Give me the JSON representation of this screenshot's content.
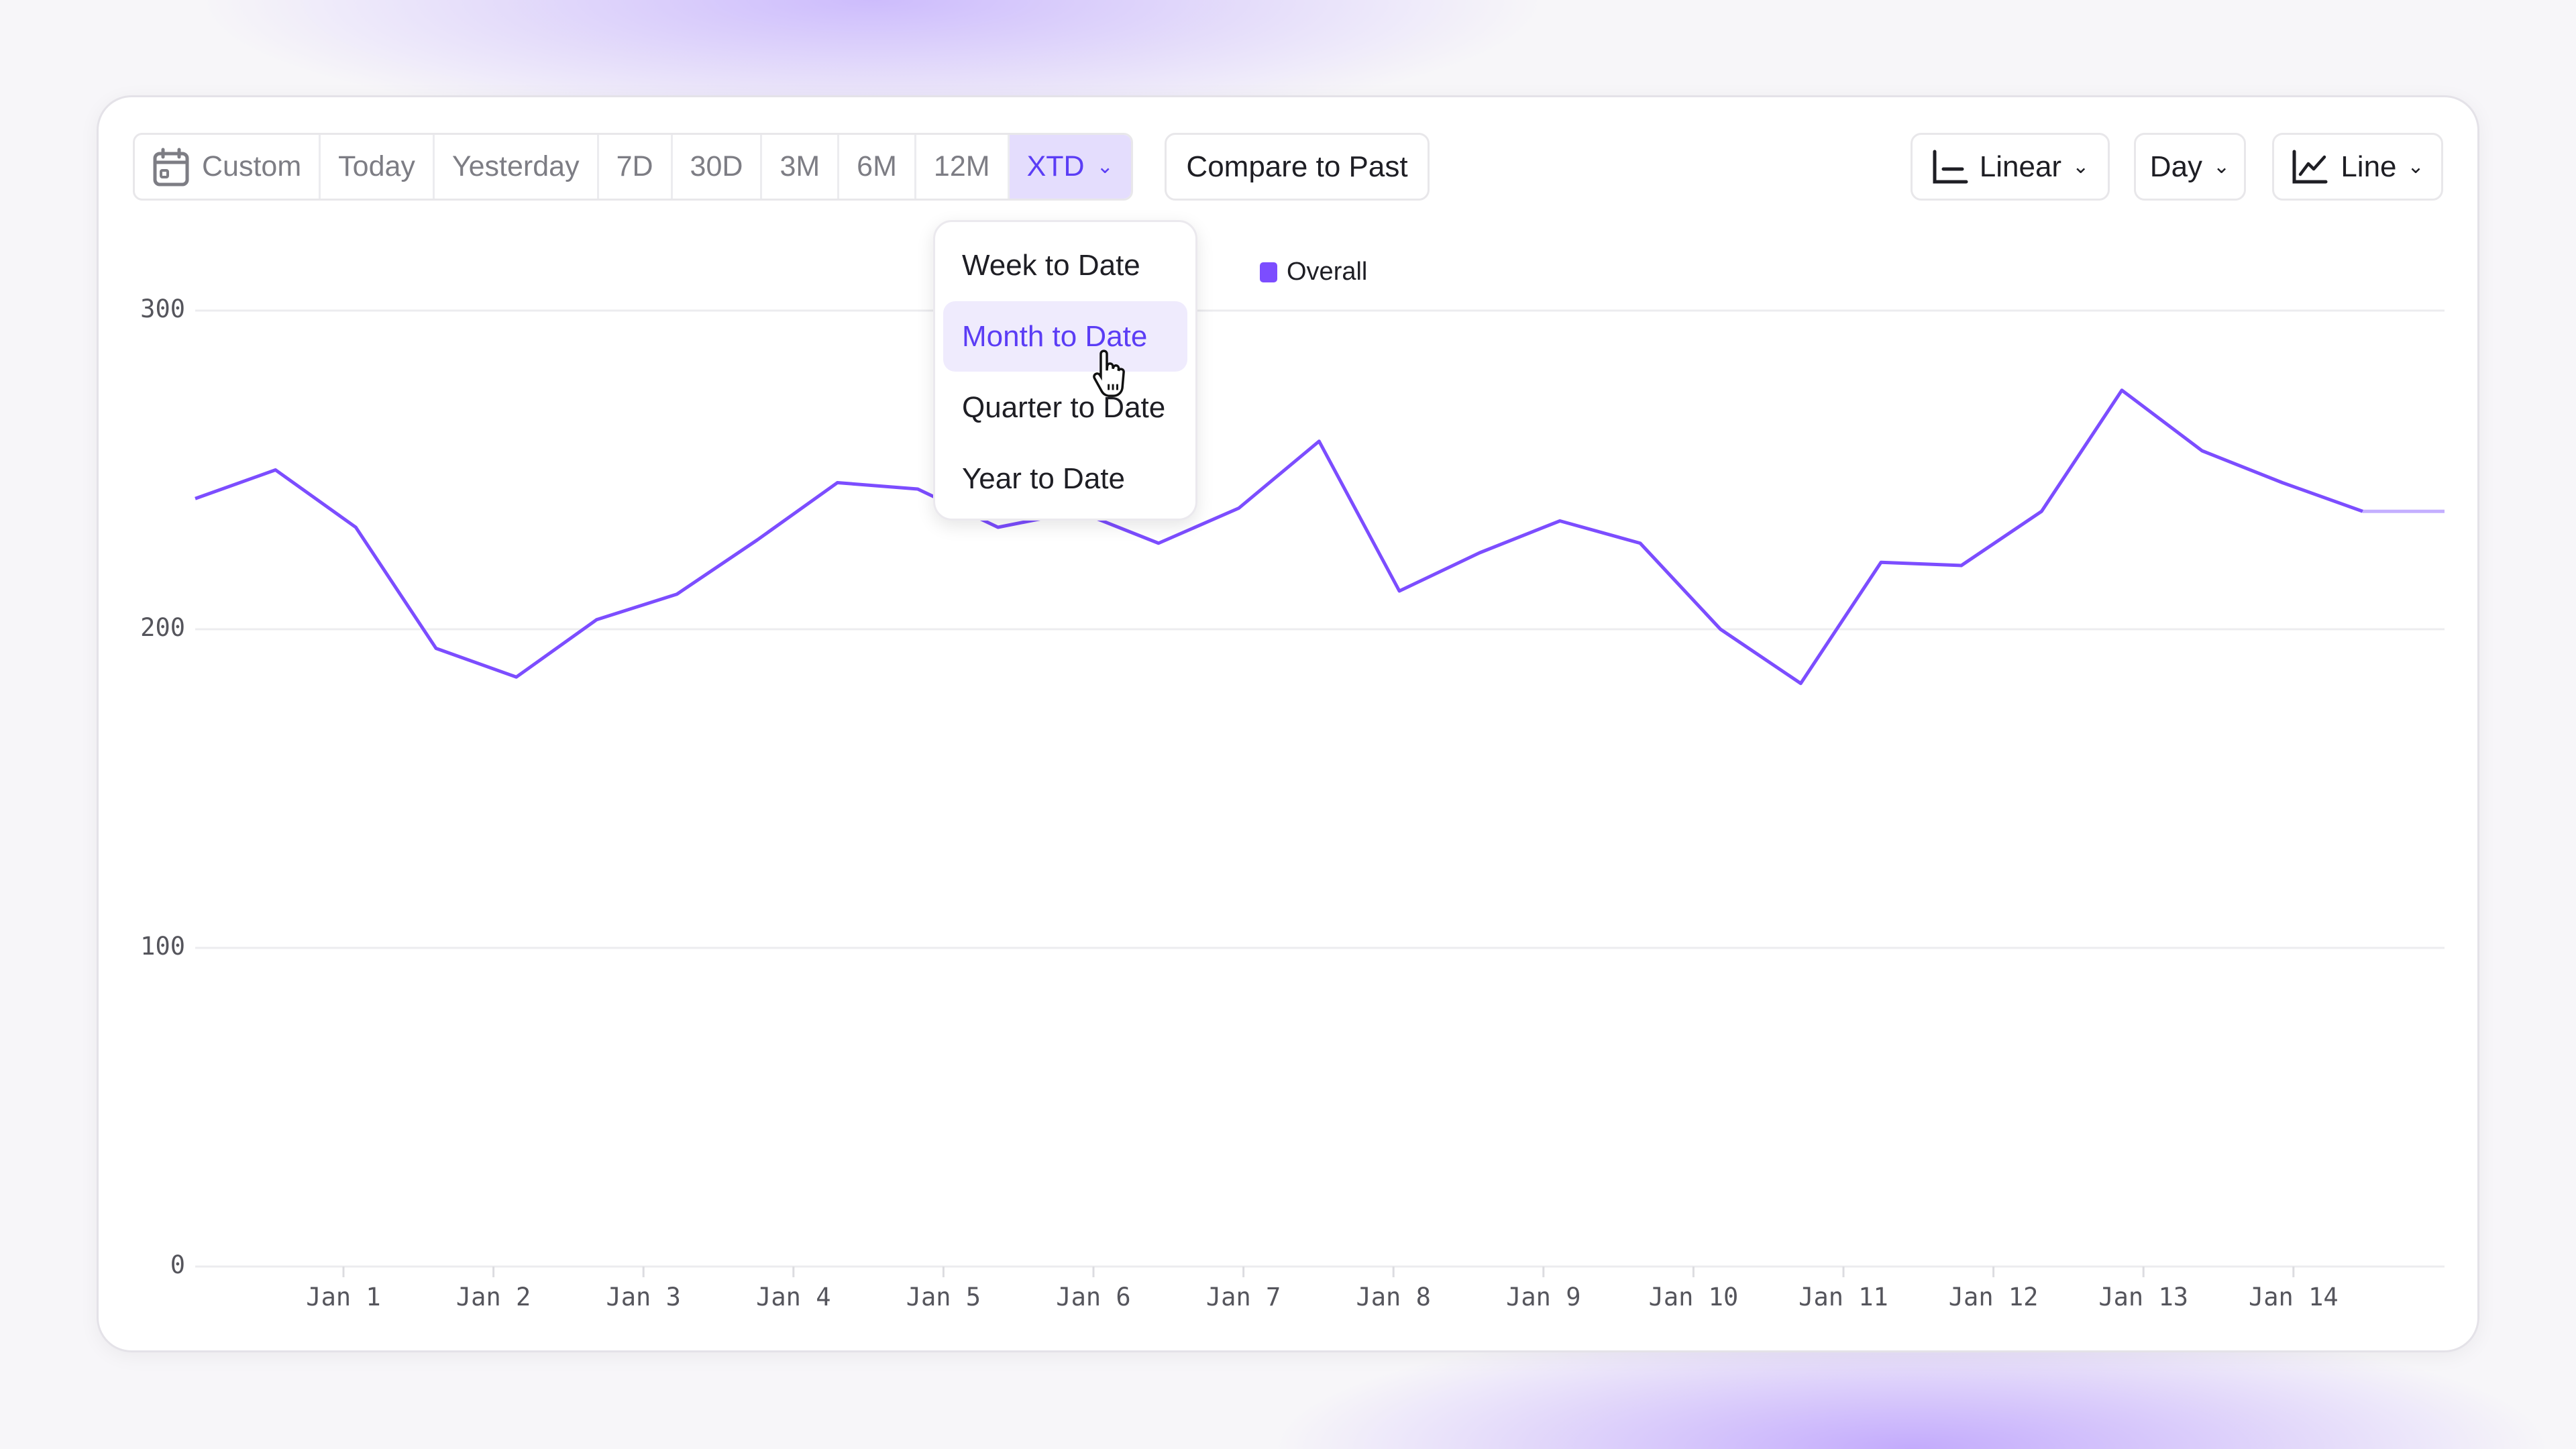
{
  "toolbar": {
    "ranges": [
      "Custom",
      "Today",
      "Yesterday",
      "7D",
      "30D",
      "3M",
      "6M",
      "12M",
      "XTD"
    ],
    "active_range": "XTD",
    "compare_label": "Compare to Past",
    "scale_label": "Linear",
    "interval_label": "Day",
    "chart_type_label": "Line"
  },
  "dropdown": {
    "items": [
      "Week to Date",
      "Month to Date",
      "Quarter to Date",
      "Year to Date"
    ],
    "highlighted": "Month to Date"
  },
  "colors": {
    "accent": "#5b3df5",
    "series": "#7c4dff",
    "active_bg": "#e4ddfd"
  },
  "chart_data": {
    "type": "line",
    "legend": [
      "Overall"
    ],
    "legend_position": "top",
    "ylim": [
      0,
      300
    ],
    "yticks": [
      "0",
      "100",
      "200",
      "300"
    ],
    "xticks": [
      "Jan 1",
      "Jan 2",
      "Jan 3",
      "Jan 4",
      "Jan 5",
      "Jan 6",
      "Jan 7",
      "Jan 8",
      "Jan 9",
      "Jan 10",
      "Jan 11",
      "Jan 12",
      "Jan 13",
      "Jan 14"
    ],
    "grid": true,
    "series": [
      {
        "name": "Overall",
        "values": [
          241,
          250,
          232,
          194,
          185,
          203,
          211,
          228,
          246,
          244,
          232,
          237,
          227,
          238,
          259,
          212,
          224,
          234,
          227,
          200,
          183,
          221,
          220,
          237,
          275,
          256,
          246,
          237,
          237
        ]
      }
    ]
  }
}
